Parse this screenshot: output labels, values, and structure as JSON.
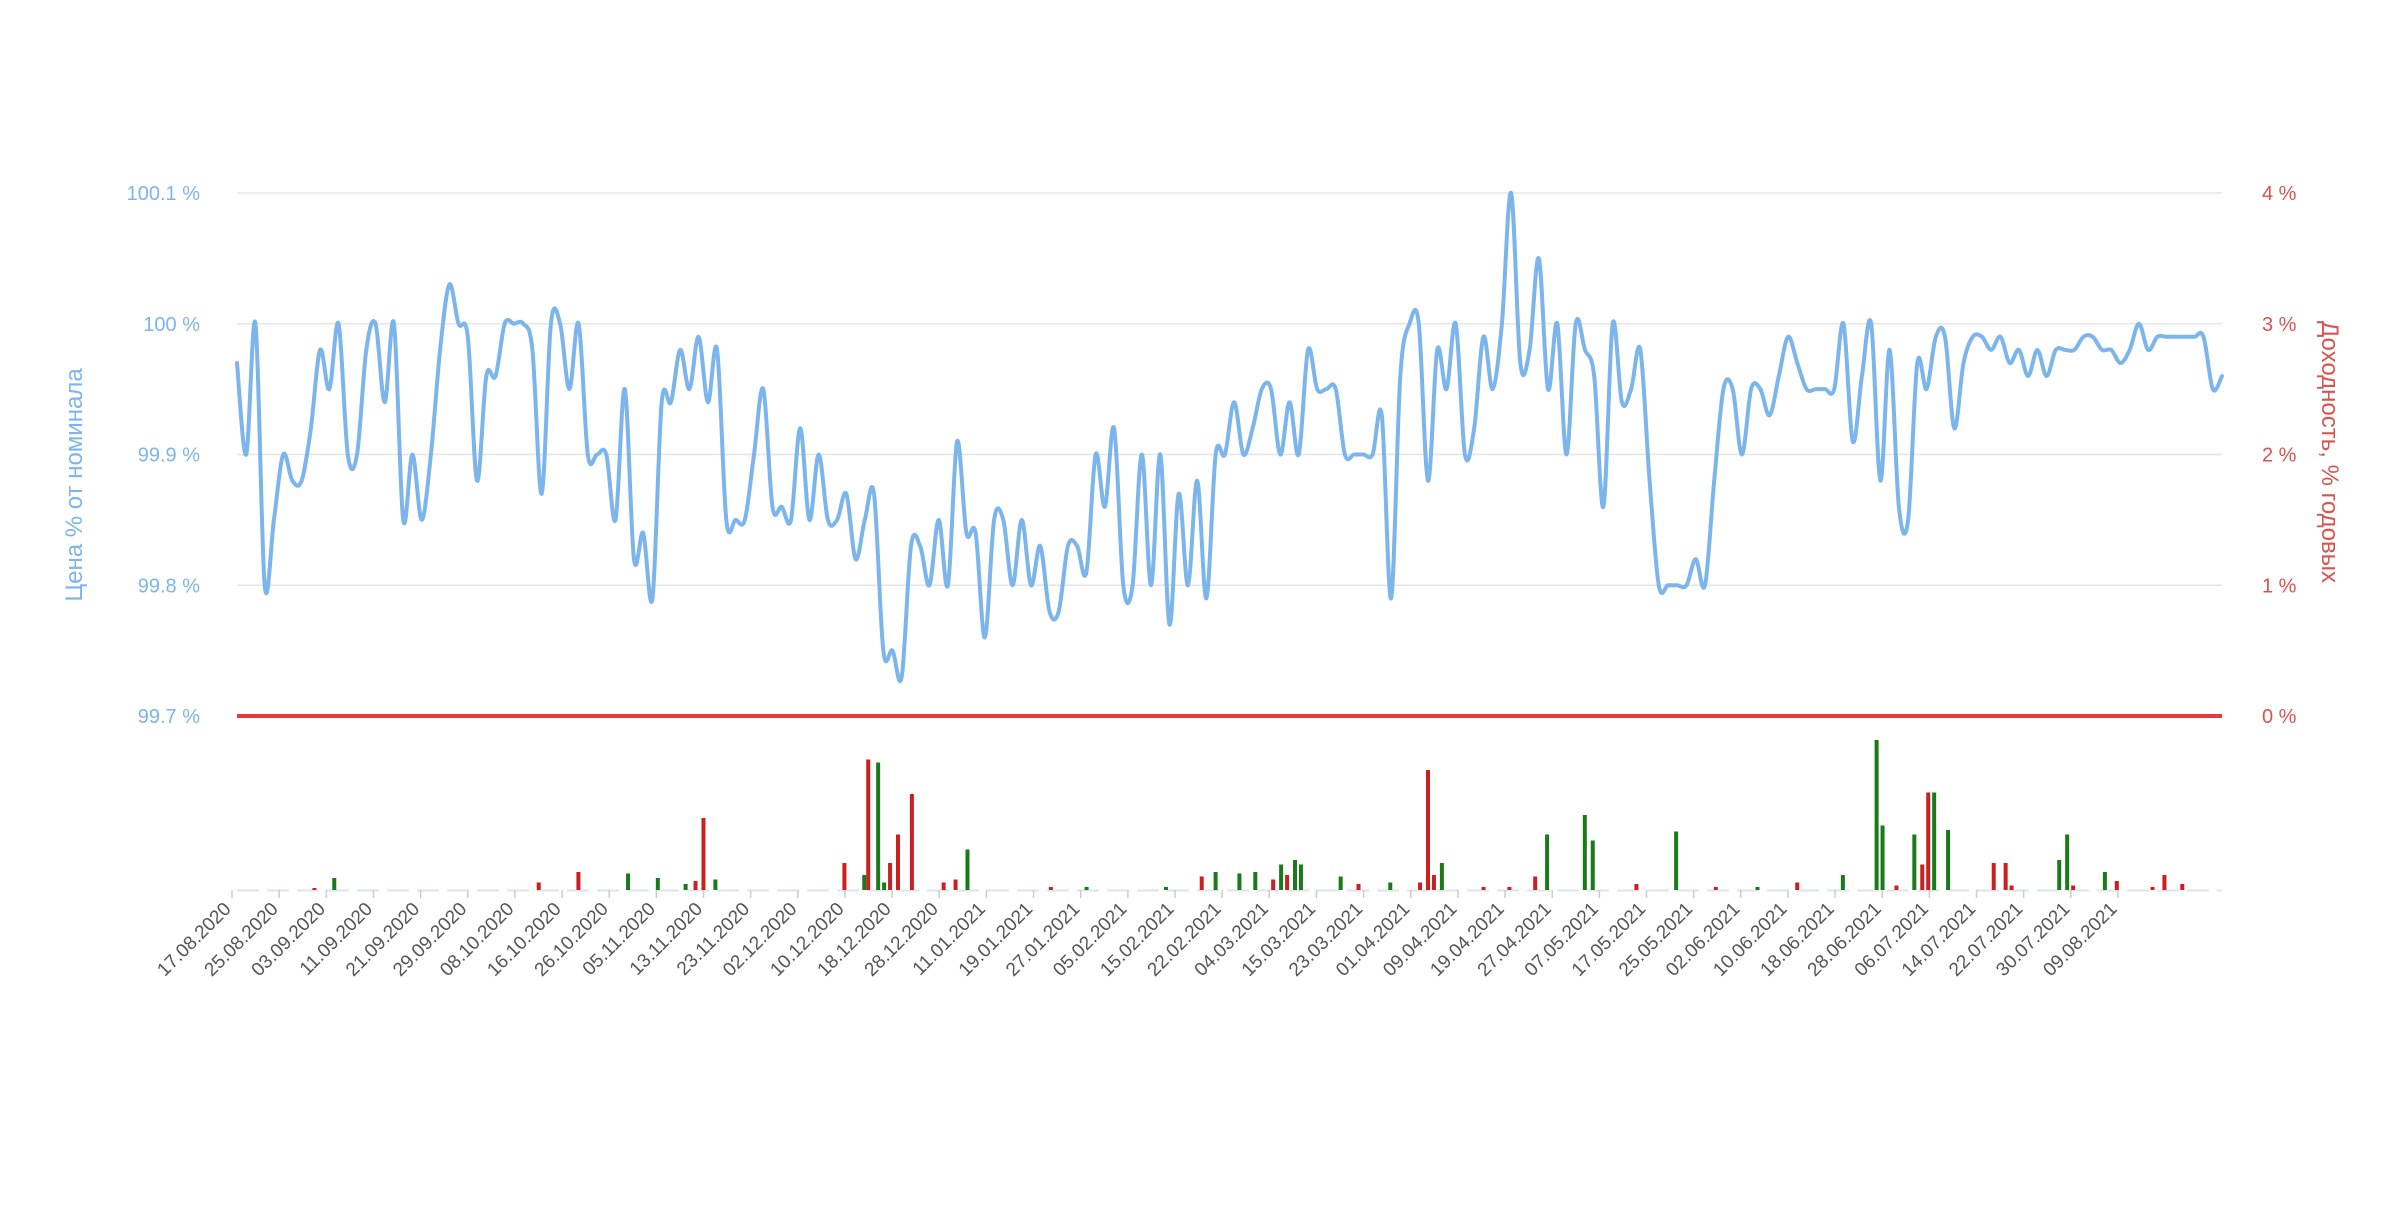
{
  "chart_data": {
    "type": "line",
    "left_axis": {
      "title": "Цена % от номинала",
      "ticks": [
        "100.1 %",
        "100 %",
        "99.9 %",
        "99.8 %",
        "99.7 %"
      ],
      "tick_values": [
        100.1,
        100.0,
        99.9,
        99.8,
        99.7
      ],
      "range": [
        99.7,
        100.1
      ]
    },
    "right_axis": {
      "title": "Доходность, % годовых",
      "ticks": [
        "4 %",
        "3 %",
        "2 %",
        "1 %",
        "0 %"
      ],
      "tick_values": [
        4,
        3,
        2,
        1,
        0
      ],
      "range": [
        0,
        4
      ]
    },
    "x_axis": {
      "ticks": [
        "17.08.2020",
        "25.08.2020",
        "03.09.2020",
        "11.09.2020",
        "21.09.2020",
        "29.09.2020",
        "08.10.2020",
        "16.10.2020",
        "26.10.2020",
        "05.11.2020",
        "13.11.2020",
        "23.11.2020",
        "02.12.2020",
        "10.12.2020",
        "18.12.2020",
        "28.12.2020",
        "11.01.2021",
        "19.01.2021",
        "27.01.2021",
        "05.02.2021",
        "15.02.2021",
        "22.02.2021",
        "04.03.2021",
        "15.03.2021",
        "23.03.2021",
        "01.04.2021",
        "09.04.2021",
        "19.04.2021",
        "27.04.2021",
        "07.05.2021",
        "17.05.2021",
        "25.05.2021",
        "02.06.2021",
        "10.06.2021",
        "18.06.2021",
        "28.06.2021",
        "06.07.2021",
        "14.07.2021",
        "22.07.2021",
        "30.07.2021",
        "09.08.2021"
      ]
    },
    "series": [
      {
        "kind": "price-line",
        "color": "#7cb5ec",
        "values": [
          99.97,
          99.9,
          100.0,
          99.8,
          99.85,
          99.9,
          99.88,
          99.88,
          99.92,
          99.98,
          99.95,
          100.0,
          99.9,
          99.9,
          99.98,
          100.0,
          99.94,
          100.0,
          99.85,
          99.9,
          99.85,
          99.9,
          99.98,
          100.03,
          100.0,
          99.99,
          99.88,
          99.96,
          99.96,
          100.0,
          100.0,
          100.0,
          99.98,
          99.87,
          100.0,
          100.0,
          99.95,
          100.0,
          99.9,
          99.9,
          99.9,
          99.85,
          99.95,
          99.82,
          99.84,
          99.79,
          99.94,
          99.94,
          99.98,
          99.95,
          99.99,
          99.94,
          99.98,
          99.85,
          99.85,
          99.85,
          99.9,
          99.95,
          99.86,
          99.86,
          99.85,
          99.92,
          99.85,
          99.9,
          99.85,
          99.85,
          99.87,
          99.82,
          99.85,
          99.87,
          99.75,
          99.75,
          99.73,
          99.83,
          99.83,
          99.8,
          99.85,
          99.8,
          99.91,
          99.84,
          99.84,
          99.76,
          99.85,
          99.85,
          99.8,
          99.85,
          99.8,
          99.83,
          99.78,
          99.78,
          99.83,
          99.83,
          99.81,
          99.9,
          99.86,
          99.92,
          99.8,
          99.8,
          99.9,
          99.8,
          99.9,
          99.77,
          99.87,
          99.8,
          99.88,
          99.79,
          99.9,
          99.9,
          99.94,
          99.9,
          99.92,
          99.95,
          99.95,
          99.9,
          99.94,
          99.9,
          99.98,
          99.95,
          99.95,
          99.95,
          99.9,
          99.9,
          99.9,
          99.9,
          99.93,
          99.79,
          99.96,
          100.0,
          100.0,
          99.88,
          99.98,
          99.95,
          100.0,
          99.9,
          99.92,
          99.99,
          99.95,
          100.0,
          100.1,
          99.97,
          99.98,
          100.05,
          99.95,
          100.0,
          99.9,
          100.0,
          99.98,
          99.96,
          99.86,
          100.0,
          99.94,
          99.95,
          99.98,
          99.88,
          99.8,
          99.8,
          99.8,
          99.8,
          99.82,
          99.8,
          99.88,
          99.95,
          99.95,
          99.9,
          99.95,
          99.95,
          99.93,
          99.96,
          99.99,
          99.97,
          99.95,
          99.95,
          99.95,
          99.95,
          100.0,
          99.91,
          99.96,
          100.0,
          99.88,
          99.98,
          99.86,
          99.85,
          99.97,
          99.95,
          99.99,
          99.99,
          99.92,
          99.97,
          99.99,
          99.99,
          99.98,
          99.99,
          99.97,
          99.98,
          99.96,
          99.98,
          99.96,
          99.98,
          99.98,
          99.98,
          99.99,
          99.99,
          99.98,
          99.98,
          99.97,
          99.98,
          100.0,
          99.98,
          99.99,
          99.99,
          99.99,
          99.99,
          99.99,
          99.99,
          99.95,
          99.96
        ]
      },
      {
        "kind": "zero-yield-line",
        "color": "#e8383d",
        "value": 0
      },
      {
        "kind": "volume-bars",
        "colors": {
          "up": "#1a7a1a",
          "down": "#cc1f1f"
        },
        "bars": [
          {
            "x": 0.039,
            "h": 0.01,
            "c": "down"
          },
          {
            "x": 0.049,
            "h": 0.08,
            "c": "up"
          },
          {
            "x": 0.152,
            "h": 0.05,
            "c": "down"
          },
          {
            "x": 0.172,
            "h": 0.12,
            "c": "down"
          },
          {
            "x": 0.197,
            "h": 0.11,
            "c": "up"
          },
          {
            "x": 0.212,
            "h": 0.08,
            "c": "up"
          },
          {
            "x": 0.226,
            "h": 0.04,
            "c": "up"
          },
          {
            "x": 0.231,
            "h": 0.06,
            "c": "down"
          },
          {
            "x": 0.235,
            "h": 0.48,
            "c": "down"
          },
          {
            "x": 0.241,
            "h": 0.07,
            "c": "up"
          },
          {
            "x": 0.306,
            "h": 0.18,
            "c": "down"
          },
          {
            "x": 0.316,
            "h": 0.1,
            "c": "up"
          },
          {
            "x": 0.318,
            "h": 0.87,
            "c": "down"
          },
          {
            "x": 0.323,
            "h": 0.85,
            "c": "up"
          },
          {
            "x": 0.326,
            "h": 0.05,
            "c": "up"
          },
          {
            "x": 0.329,
            "h": 0.18,
            "c": "down"
          },
          {
            "x": 0.333,
            "h": 0.37,
            "c": "down"
          },
          {
            "x": 0.34,
            "h": 0.64,
            "c": "down"
          },
          {
            "x": 0.356,
            "h": 0.05,
            "c": "down"
          },
          {
            "x": 0.362,
            "h": 0.07,
            "c": "down"
          },
          {
            "x": 0.368,
            "h": 0.27,
            "c": "up"
          },
          {
            "x": 0.41,
            "h": 0.02,
            "c": "down"
          },
          {
            "x": 0.428,
            "h": 0.02,
            "c": "up"
          },
          {
            "x": 0.468,
            "h": 0.02,
            "c": "up"
          },
          {
            "x": 0.486,
            "h": 0.09,
            "c": "down"
          },
          {
            "x": 0.493,
            "h": 0.12,
            "c": "up"
          },
          {
            "x": 0.505,
            "h": 0.11,
            "c": "up"
          },
          {
            "x": 0.513,
            "h": 0.12,
            "c": "up"
          },
          {
            "x": 0.522,
            "h": 0.07,
            "c": "down"
          },
          {
            "x": 0.526,
            "h": 0.17,
            "c": "up"
          },
          {
            "x": 0.529,
            "h": 0.1,
            "c": "down"
          },
          {
            "x": 0.533,
            "h": 0.2,
            "c": "up"
          },
          {
            "x": 0.536,
            "h": 0.17,
            "c": "up"
          },
          {
            "x": 0.556,
            "h": 0.09,
            "c": "up"
          },
          {
            "x": 0.565,
            "h": 0.04,
            "c": "down"
          },
          {
            "x": 0.581,
            "h": 0.05,
            "c": "up"
          },
          {
            "x": 0.596,
            "h": 0.05,
            "c": "down"
          },
          {
            "x": 0.6,
            "h": 0.8,
            "c": "down"
          },
          {
            "x": 0.603,
            "h": 0.1,
            "c": "down"
          },
          {
            "x": 0.607,
            "h": 0.18,
            "c": "up"
          },
          {
            "x": 0.628,
            "h": 0.02,
            "c": "down"
          },
          {
            "x": 0.641,
            "h": 0.02,
            "c": "down"
          },
          {
            "x": 0.654,
            "h": 0.09,
            "c": "down"
          },
          {
            "x": 0.66,
            "h": 0.37,
            "c": "up"
          },
          {
            "x": 0.679,
            "h": 0.5,
            "c": "up"
          },
          {
            "x": 0.683,
            "h": 0.33,
            "c": "up"
          },
          {
            "x": 0.705,
            "h": 0.04,
            "c": "down"
          },
          {
            "x": 0.725,
            "h": 0.39,
            "c": "up"
          },
          {
            "x": 0.745,
            "h": 0.02,
            "c": "down"
          },
          {
            "x": 0.766,
            "h": 0.02,
            "c": "up"
          },
          {
            "x": 0.786,
            "h": 0.05,
            "c": "down"
          },
          {
            "x": 0.809,
            "h": 0.1,
            "c": "up"
          },
          {
            "x": 0.826,
            "h": 1.0,
            "c": "up"
          },
          {
            "x": 0.829,
            "h": 0.43,
            "c": "up"
          },
          {
            "x": 0.836,
            "h": 0.03,
            "c": "down"
          },
          {
            "x": 0.845,
            "h": 0.37,
            "c": "up"
          },
          {
            "x": 0.849,
            "h": 0.17,
            "c": "down"
          },
          {
            "x": 0.852,
            "h": 0.65,
            "c": "down"
          },
          {
            "x": 0.855,
            "h": 0.65,
            "c": "up"
          },
          {
            "x": 0.862,
            "h": 0.4,
            "c": "up"
          },
          {
            "x": 0.885,
            "h": 0.18,
            "c": "down"
          },
          {
            "x": 0.891,
            "h": 0.18,
            "c": "down"
          },
          {
            "x": 0.894,
            "h": 0.03,
            "c": "down"
          },
          {
            "x": 0.918,
            "h": 0.2,
            "c": "up"
          },
          {
            "x": 0.922,
            "h": 0.37,
            "c": "up"
          },
          {
            "x": 0.925,
            "h": 0.03,
            "c": "down"
          },
          {
            "x": 0.941,
            "h": 0.12,
            "c": "up"
          },
          {
            "x": 0.947,
            "h": 0.06,
            "c": "down"
          },
          {
            "x": 0.965,
            "h": 0.02,
            "c": "down"
          },
          {
            "x": 0.971,
            "h": 0.1,
            "c": "down"
          },
          {
            "x": 0.98,
            "h": 0.04,
            "c": "down"
          }
        ]
      }
    ],
    "grid": true
  }
}
